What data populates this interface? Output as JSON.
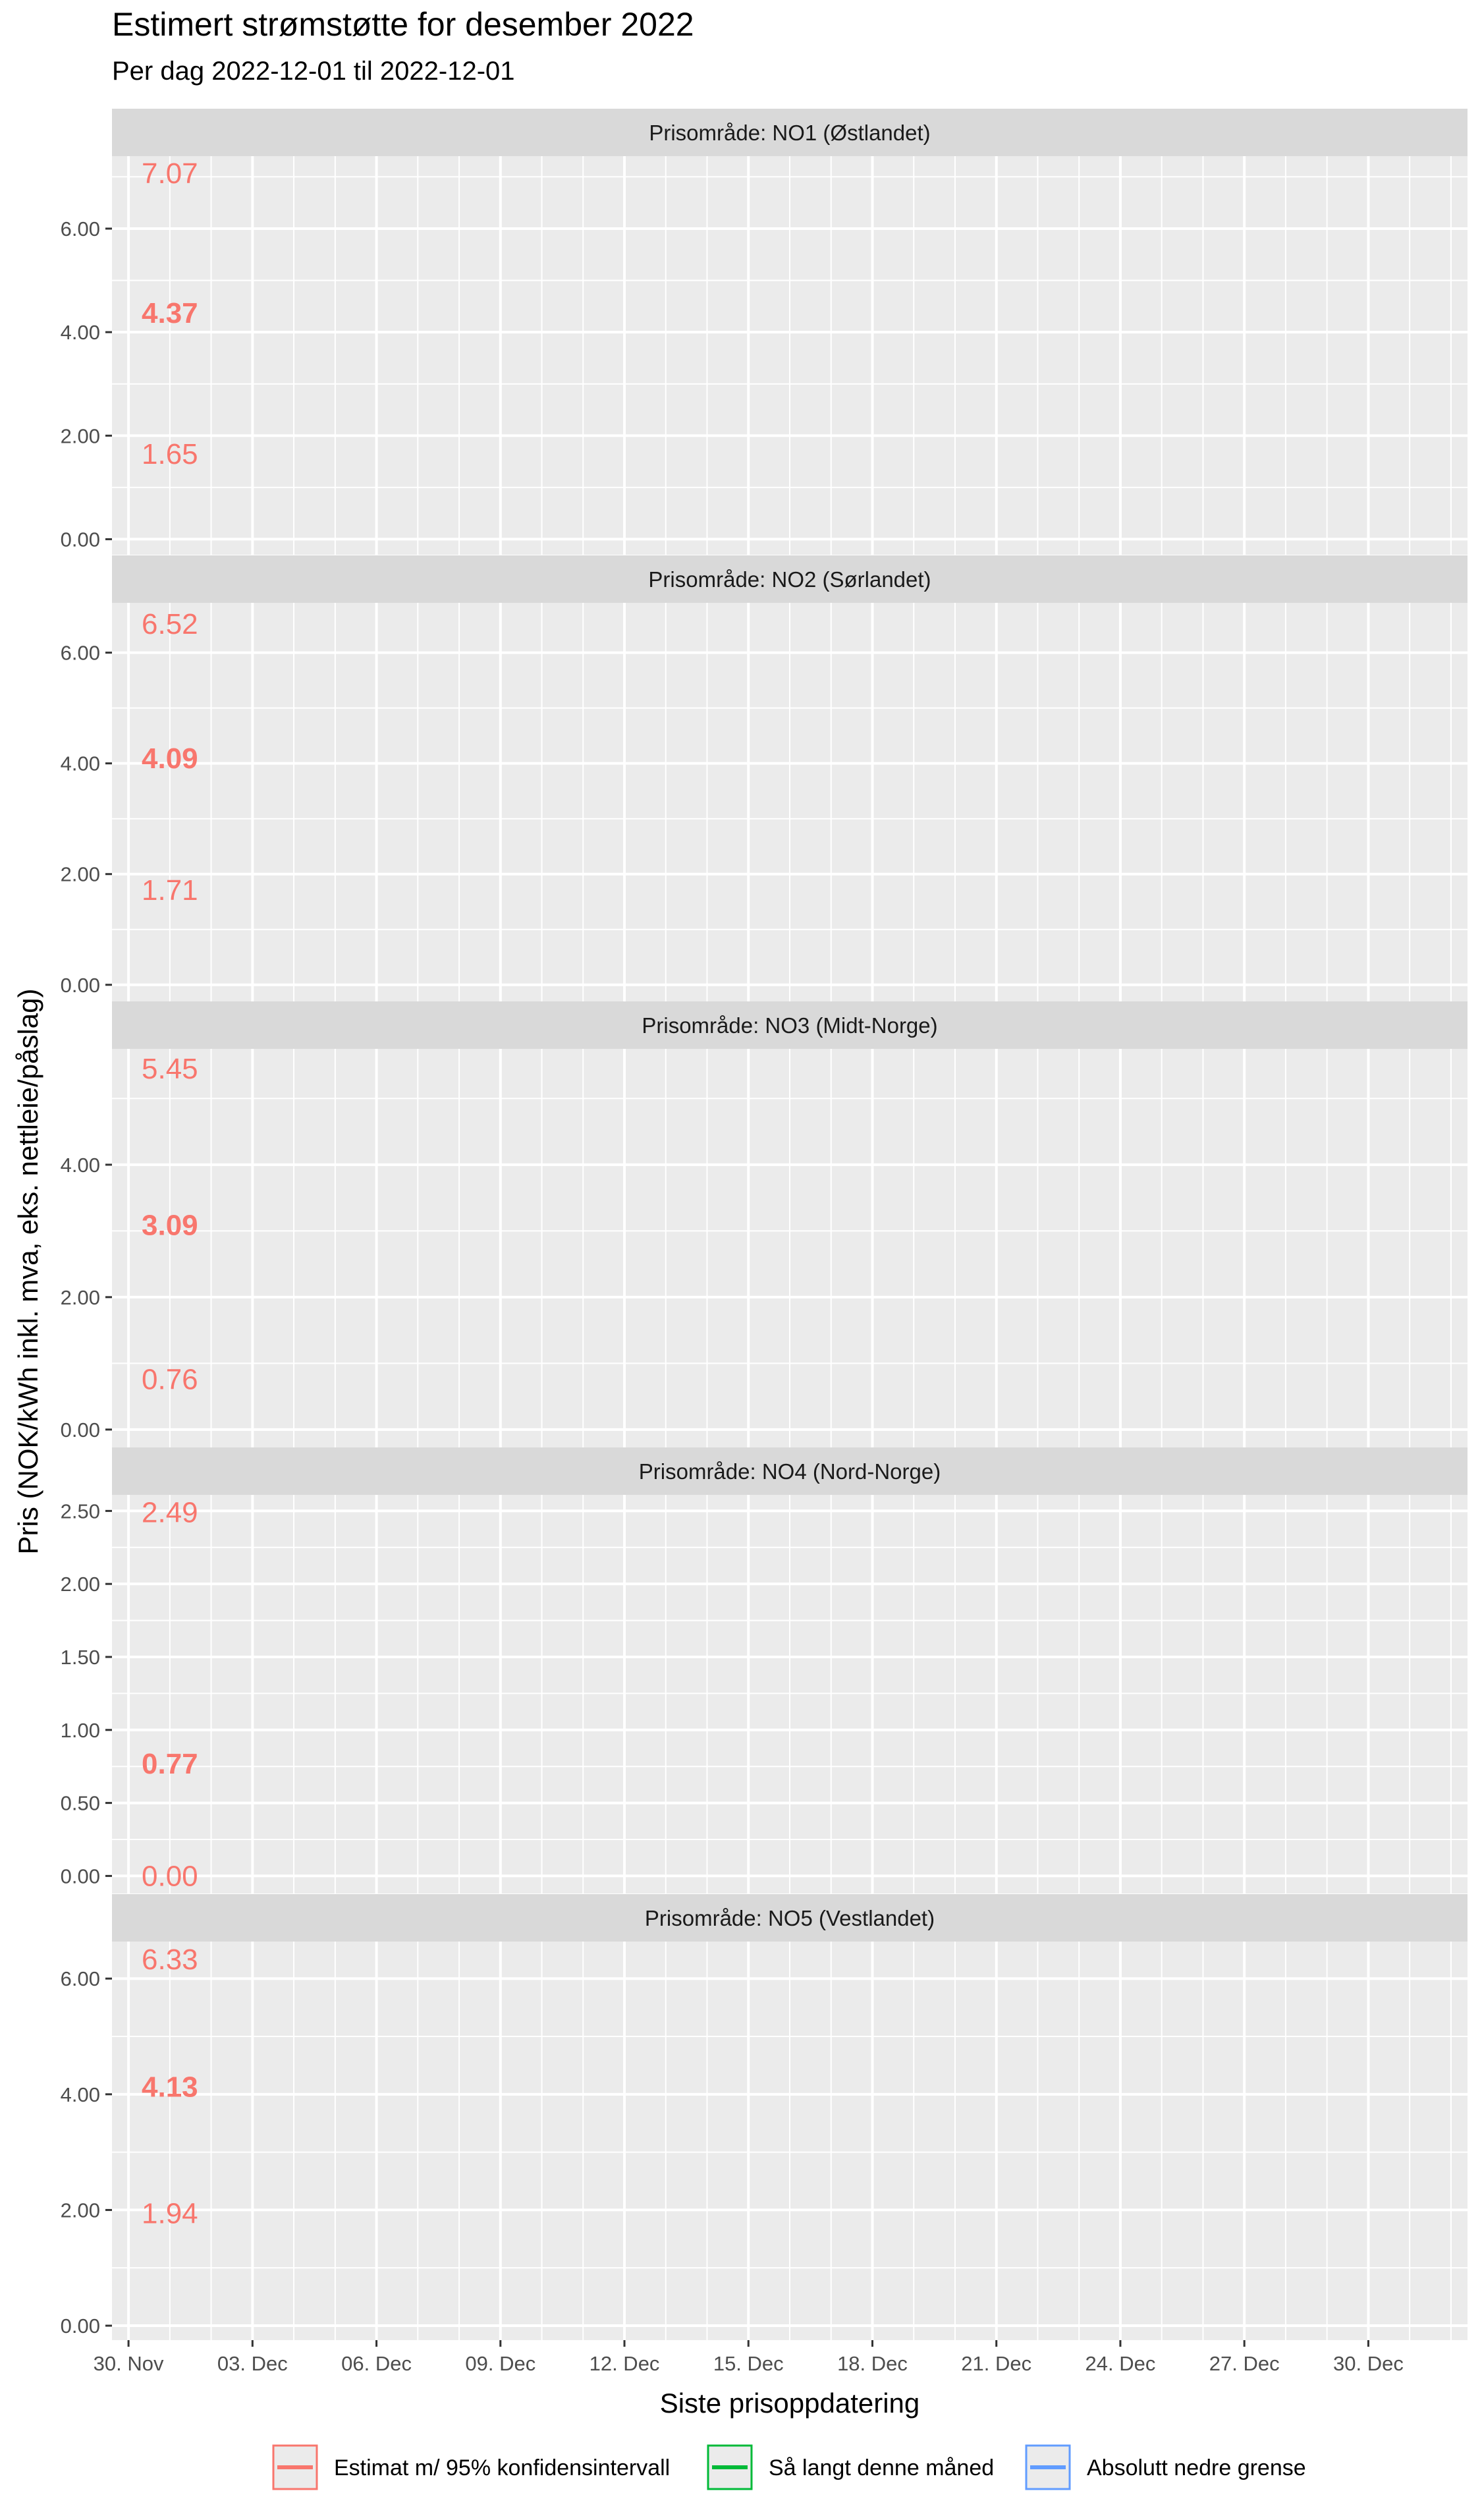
{
  "chart_data": {
    "type": "line",
    "title": "Estimert strømstøtte for desember 2022",
    "subtitle": "Per dag 2022-12-01 til 2022-12-01",
    "xlabel": "Siste prisoppdatering",
    "ylabel": "Pris (NOK/kWh inkl. mva, eks. nettleie/påslag)",
    "grid": true,
    "legend_position": "bottom",
    "x_ticks": [
      "30. Nov",
      "03. Dec",
      "06. Dec",
      "09. Dec",
      "12. Dec",
      "15. Dec",
      "18. Dec",
      "21. Dec",
      "24. Dec",
      "27. Dec",
      "30. Dec"
    ],
    "legend": [
      {
        "label": "Estimat m/ 95% konfidensintervall",
        "color": "#F8766D"
      },
      {
        "label": "Så langt denne måned",
        "color": "#00BA38"
      },
      {
        "label": "Absolutt nedre grense",
        "color": "#619CFF"
      }
    ],
    "panels": [
      {
        "strip": "Prisområde: NO1 (Østlandet)",
        "ylim": [
          -0.3,
          7.4
        ],
        "ticks": [
          0,
          2,
          4,
          6
        ],
        "tick_labels": [
          "0.00",
          "2.00",
          "4.00",
          "6.00"
        ],
        "date": "2022-12-01",
        "estimate": 4.37,
        "lower": 1.65,
        "upper": 7.07,
        "estimate_label": "4.37",
        "lower_label": "1.65",
        "upper_label": "7.07"
      },
      {
        "strip": "Prisområde: NO2 (Sørlandet)",
        "ylim": [
          -0.3,
          6.9
        ],
        "ticks": [
          0,
          2,
          4,
          6
        ],
        "tick_labels": [
          "0.00",
          "2.00",
          "4.00",
          "6.00"
        ],
        "date": "2022-12-01",
        "estimate": 4.09,
        "lower": 1.71,
        "upper": 6.52,
        "estimate_label": "4.09",
        "lower_label": "1.71",
        "upper_label": "6.52"
      },
      {
        "strip": "Prisområde: NO3 (Midt-Norge)",
        "ylim": [
          -0.27,
          5.75
        ],
        "ticks": [
          0,
          2,
          4
        ],
        "tick_labels": [
          "0.00",
          "2.00",
          "4.00"
        ],
        "date": "2022-12-01",
        "estimate": 3.09,
        "lower": 0.76,
        "upper": 5.45,
        "estimate_label": "3.09",
        "lower_label": "0.76",
        "upper_label": "5.45"
      },
      {
        "strip": "Prisområde: NO4 (Nord-Norge)",
        "ylim": [
          -0.12,
          2.61
        ],
        "ticks": [
          0,
          0.5,
          1.0,
          1.5,
          2.0,
          2.5
        ],
        "tick_labels": [
          "0.00",
          "0.50",
          "1.00",
          "1.50",
          "2.00",
          "2.50"
        ],
        "date": "2022-12-01",
        "estimate": 0.77,
        "lower": 0.0,
        "upper": 2.49,
        "estimate_label": "0.77",
        "lower_label": "0.00",
        "upper_label": "2.49"
      },
      {
        "strip": "Prisområde: NO5 (Vestlandet)",
        "ylim": [
          -0.25,
          6.64
        ],
        "ticks": [
          0,
          2,
          4,
          6
        ],
        "tick_labels": [
          "0.00",
          "2.00",
          "4.00",
          "6.00"
        ],
        "date": "2022-12-01",
        "estimate": 4.13,
        "lower": 1.94,
        "upper": 6.33,
        "estimate_label": "4.13",
        "lower_label": "1.94",
        "upper_label": "6.33"
      }
    ]
  }
}
